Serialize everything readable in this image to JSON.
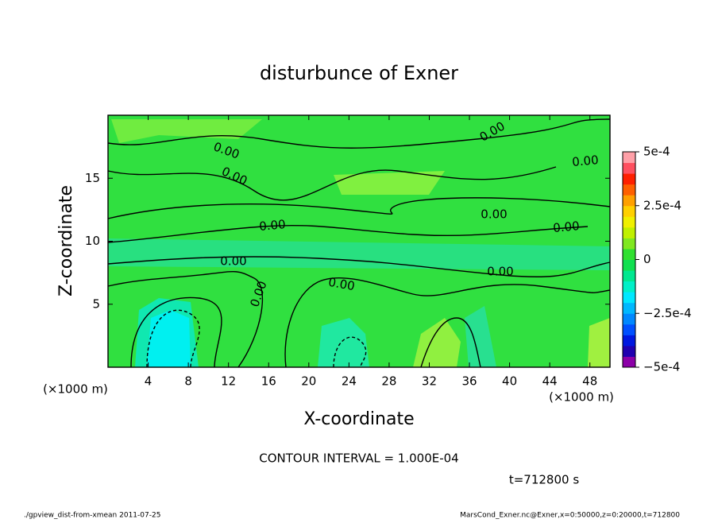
{
  "chart_data": {
    "type": "contour",
    "title": "disturbunce of Exner",
    "xlabel": "X-coordinate",
    "ylabel": "Z-coordinate",
    "x_unit": "(×1000 m)",
    "xlim": [
      0,
      50
    ],
    "xticks": [
      4,
      8,
      12,
      16,
      20,
      24,
      28,
      32,
      36,
      40,
      44,
      48
    ],
    "ylim": [
      0,
      20
    ],
    "yticks": [
      5,
      10,
      15
    ],
    "clim": [
      -0.0005,
      0.0005
    ],
    "cticks": [
      {
        "value": 0.0005,
        "label": "5e-4"
      },
      {
        "value": 0.00025,
        "label": "2.5e-4"
      },
      0,
      {
        "value": -0.00025,
        "label": "−2.5e-4"
      },
      {
        "value": -0.0005,
        "label": "−5e-4"
      }
    ],
    "colorbar_colors": [
      "#8c00a8",
      "#2000b0",
      "#0018e0",
      "#0050ff",
      "#0088ff",
      "#00b8ff",
      "#00e8ff",
      "#00f0c8",
      "#00e890",
      "#10e050",
      "#30e030",
      "#80e820",
      "#c0f000",
      "#f0f000",
      "#ffd000",
      "#ffa000",
      "#ff6000",
      "#ff2000",
      "#ff5060",
      "#ffa0a8"
    ],
    "contour_label": "0.00",
    "interval_text": "CONTOUR INTERVAL = 1.000E-04",
    "time_text": "t=712800 s",
    "footer_left": "./gpview_dist-from-xmean  2011-07-25",
    "footer_right": "MarsCond_Exner.nc@Exner,x=0:50000,z=0:20000,t=712800"
  }
}
